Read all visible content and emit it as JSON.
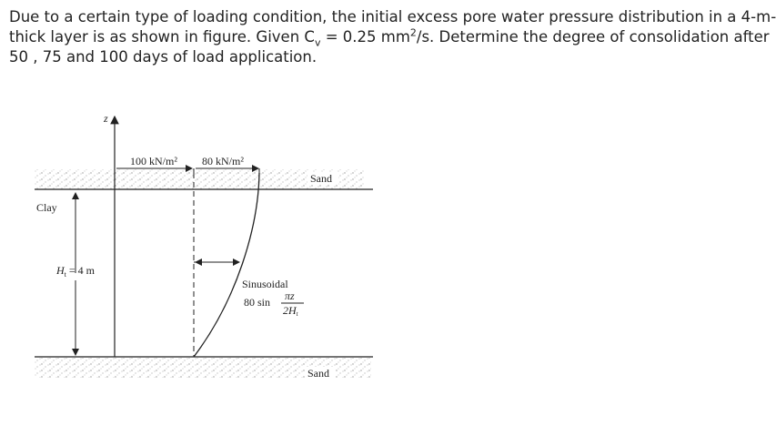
{
  "question": {
    "line1": "Due to a certain type of loading condition, the initial excess pore water pressure distribution in a 4-m-",
    "line2": [
      "thick layer is as shown in figure. Given C",
      "v",
      " = 0.25 mm",
      "2",
      "/s. Determine the degree of consolidation after"
    ],
    "line3": "50 , 75 and 100 days of load application."
  },
  "figure": {
    "axis_label": "z",
    "load_left": "100 kN/m²",
    "load_right": "80 kN/m²",
    "sand_top": "Sand",
    "clay": "Clay",
    "thickness": [
      "H",
      "t",
      " = 4 m"
    ],
    "curve_label": "Sinusoidal",
    "formula_prefix": "80 sin",
    "formula_numerator": "πz",
    "formula_denominator": [
      "2H",
      "t"
    ],
    "sand_bottom": "Sand"
  }
}
